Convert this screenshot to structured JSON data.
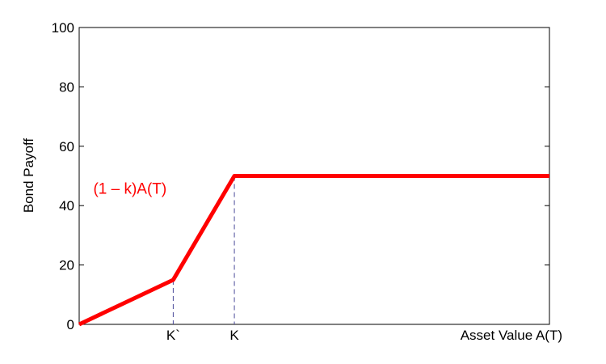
{
  "chart_data": {
    "type": "line",
    "title": "",
    "xlabel": "Asset Value A(T)",
    "ylabel": "Bond Payoff",
    "xlim": [
      0,
      100
    ],
    "ylim": [
      0,
      100
    ],
    "yticks": [
      0,
      20,
      40,
      60,
      80,
      100
    ],
    "ytick_labels": [
      "0",
      "20",
      "40",
      "60",
      "80",
      "100"
    ],
    "grid": false,
    "series": [
      {
        "color": "#ff0000",
        "x": [
          0,
          20,
          33,
          100
        ],
        "y": [
          0,
          15,
          50,
          50
        ]
      }
    ],
    "x_markers": [
      {
        "label": "K`",
        "x": 20,
        "y": 15
      },
      {
        "label": "K",
        "x": 33,
        "y": 50
      }
    ],
    "annotations": [
      {
        "text": "(1 – k)A(T)",
        "x": 3,
        "y": 44,
        "color": "#ff0000"
      }
    ]
  }
}
